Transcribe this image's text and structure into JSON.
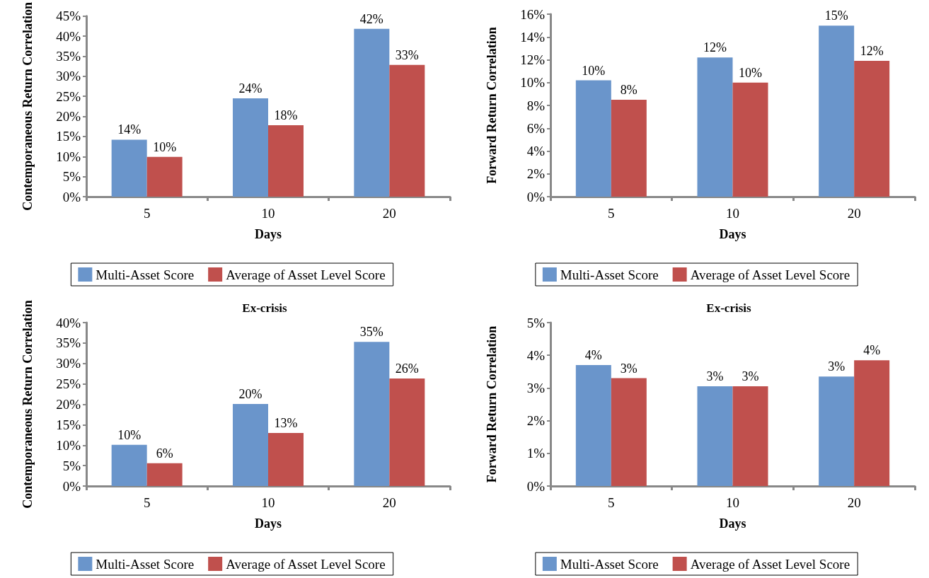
{
  "chart_data": [
    {
      "type": "bar",
      "xlabel": "Days",
      "ylabel": "Contemporaneous Return Correlation",
      "categories": [
        "5",
        "10",
        "20"
      ],
      "ylim": [
        0,
        45
      ],
      "yticks": [
        {
          "value": 0,
          "label": "0%"
        },
        {
          "value": 5,
          "label": "5%"
        },
        {
          "value": 10,
          "label": "10%"
        },
        {
          "value": 15,
          "label": "15%"
        },
        {
          "value": 20,
          "label": "20%"
        },
        {
          "value": 25,
          "label": "25%"
        },
        {
          "value": 30,
          "label": "30%"
        },
        {
          "value": 35,
          "label": "35%"
        },
        {
          "value": 40,
          "label": "40%"
        },
        {
          "value": 45,
          "label": "45%"
        }
      ],
      "grid": false,
      "legend": "bottom",
      "series": [
        {
          "name": "Multi-Asset Score",
          "color": "#6a95cb",
          "values": [
            14.2,
            24.5,
            41.8
          ],
          "value_labels": [
            "14%",
            "24%",
            "42%"
          ]
        },
        {
          "name": "Average of Asset Level Score",
          "color": "#c0504d",
          "values": [
            9.9,
            17.8,
            32.8
          ],
          "value_labels": [
            "10%",
            "18%",
            "33%"
          ]
        }
      ]
    },
    {
      "type": "bar",
      "xlabel": "Days",
      "ylabel": "Forward Return Correlation",
      "categories": [
        "5",
        "10",
        "20"
      ],
      "ylim": [
        0,
        16
      ],
      "yticks": [
        {
          "value": 0,
          "label": "0%"
        },
        {
          "value": 2,
          "label": "2%"
        },
        {
          "value": 4,
          "label": "4%"
        },
        {
          "value": 6,
          "label": "6%"
        },
        {
          "value": 8,
          "label": "8%"
        },
        {
          "value": 10,
          "label": "10%"
        },
        {
          "value": 12,
          "label": "12%"
        },
        {
          "value": 14,
          "label": "14%"
        },
        {
          "value": 16,
          "label": "16%"
        }
      ],
      "grid": false,
      "legend": "bottom",
      "series": [
        {
          "name": "Multi-Asset Score",
          "color": "#6a95cb",
          "values": [
            10.2,
            12.2,
            15.0
          ],
          "value_labels": [
            "10%",
            "12%",
            "15%"
          ]
        },
        {
          "name": "Average of Asset Level Score",
          "color": "#c0504d",
          "values": [
            8.5,
            10.0,
            11.9
          ],
          "value_labels": [
            "8%",
            "10%",
            "12%"
          ]
        }
      ]
    },
    {
      "type": "bar",
      "title": "Ex-crisis",
      "xlabel": "Days",
      "ylabel": "Contemporaneous Return Correlation",
      "categories": [
        "5",
        "10",
        "20"
      ],
      "ylim": [
        0,
        40
      ],
      "yticks": [
        {
          "value": 0,
          "label": "0%"
        },
        {
          "value": 5,
          "label": "5%"
        },
        {
          "value": 10,
          "label": "10%"
        },
        {
          "value": 15,
          "label": "15%"
        },
        {
          "value": 20,
          "label": "20%"
        },
        {
          "value": 25,
          "label": "25%"
        },
        {
          "value": 30,
          "label": "30%"
        },
        {
          "value": 35,
          "label": "35%"
        },
        {
          "value": 40,
          "label": "40%"
        }
      ],
      "grid": false,
      "legend": "bottom",
      "series": [
        {
          "name": "Multi-Asset Score",
          "color": "#6a95cb",
          "values": [
            10.1,
            20.1,
            35.3
          ],
          "value_labels": [
            "10%",
            "20%",
            "35%"
          ]
        },
        {
          "name": "Average of Asset Level Score",
          "color": "#c0504d",
          "values": [
            5.6,
            13.0,
            26.3
          ],
          "value_labels": [
            "6%",
            "13%",
            "26%"
          ]
        }
      ]
    },
    {
      "type": "bar",
      "title": "Ex-crisis",
      "xlabel": "Days",
      "ylabel": "Forward Return Correlation",
      "categories": [
        "5",
        "10",
        "20"
      ],
      "ylim": [
        0,
        5
      ],
      "yticks": [
        {
          "value": 0,
          "label": "0%"
        },
        {
          "value": 1,
          "label": "1%"
        },
        {
          "value": 2,
          "label": "2%"
        },
        {
          "value": 3,
          "label": "3%"
        },
        {
          "value": 4,
          "label": "4%"
        },
        {
          "value": 5,
          "label": "5%"
        }
      ],
      "grid": false,
      "legend": "bottom",
      "series": [
        {
          "name": "Multi-Asset Score",
          "color": "#6a95cb",
          "values": [
            3.7,
            3.05,
            3.35
          ],
          "value_labels": [
            "4%",
            "3%",
            "3%"
          ]
        },
        {
          "name": "Average of Asset Level Score",
          "color": "#c0504d",
          "values": [
            3.3,
            3.05,
            3.85
          ],
          "value_labels": [
            "3%",
            "3%",
            "4%"
          ]
        }
      ]
    }
  ]
}
